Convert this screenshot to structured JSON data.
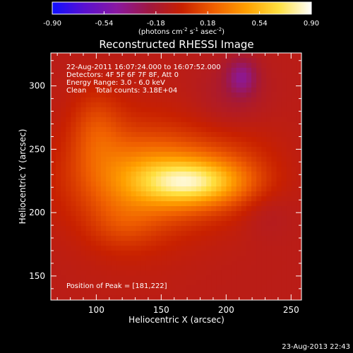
{
  "colors": {
    "background": "#000000",
    "text": "#ffffff"
  },
  "colorbar": {
    "ticks": [
      "-0.90",
      "-0.54",
      "-0.18",
      "0.18",
      "0.54",
      "0.90"
    ],
    "tick_values": [
      -0.9,
      -0.54,
      -0.18,
      0.18,
      0.54,
      0.9
    ],
    "range": [
      -0.9,
      0.9
    ],
    "label": "(photons cm",
    "label_exp1": "-2",
    "label_mid": " s",
    "label_exp2": "-1",
    "label_mid2": " asec",
    "label_exp3": "-2",
    "label_end": ")",
    "colormap": [
      "#1010ff",
      "#5a10d0",
      "#8a18a0",
      "#a01840",
      "#c82000",
      "#f06000",
      "#ffa000",
      "#ffe040",
      "#ffffff"
    ]
  },
  "chart_data": {
    "type": "heatmap",
    "title": "Reconstructed RHESSI Image",
    "xlabel": "Heliocentric X (arcsec)",
    "ylabel": "Heliocentric Y (arcsec)",
    "xlim": [
      65,
      258
    ],
    "ylim": [
      131,
      326
    ],
    "xticks": [
      100,
      150,
      200,
      250
    ],
    "yticks": [
      150,
      200,
      250,
      300
    ],
    "xtick_labels": [
      "100",
      "150",
      "200",
      "250"
    ],
    "ytick_labels": [
      "150",
      "200",
      "250",
      "300"
    ],
    "annotations": [
      "22-Aug-2011 16:07:24.000 to 16:07:52.000",
      "Detectors: 4F 5F 6F 7F 8F, Att 0",
      "Energy Range: 3.0 - 6.0 keV",
      "Clean    Total counts: 3.18E+04"
    ],
    "peak_label": "Position of Peak = [181,222]",
    "peak": [
      181,
      222
    ],
    "sources": [
      {
        "x": 175,
        "y": 224,
        "sx": 28,
        "sy": 12,
        "amp": 0.52
      },
      {
        "x": 150,
        "y": 228,
        "sx": 40,
        "sy": 22,
        "amp": 0.34
      },
      {
        "x": 130,
        "y": 225,
        "sx": 38,
        "sy": 38,
        "amp": 0.18
      },
      {
        "x": 100,
        "y": 265,
        "sx": 14,
        "sy": 22,
        "amp": 0.18
      },
      {
        "x": 120,
        "y": 190,
        "sx": 18,
        "sy": 14,
        "amp": 0.1
      },
      {
        "x": 210,
        "y": 240,
        "sx": 25,
        "sy": 30,
        "amp": 0.08
      },
      {
        "x": 212,
        "y": 307,
        "sx": 8,
        "sy": 10,
        "amp": -0.28
      },
      {
        "x": 205,
        "y": 290,
        "sx": 20,
        "sy": 20,
        "amp": -0.1
      },
      {
        "x": 230,
        "y": 200,
        "sx": 14,
        "sy": 14,
        "amp": -0.06
      }
    ],
    "baseline": -0.08
  },
  "footer": {
    "timestamp": "23-Aug-2013 22:43"
  }
}
